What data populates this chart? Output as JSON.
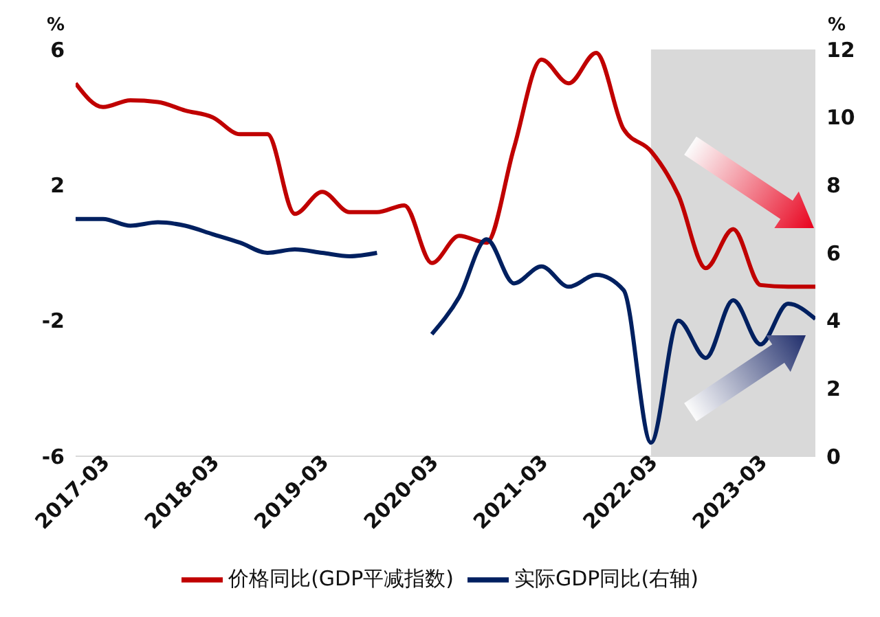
{
  "chart_data": {
    "type": "line",
    "ylabel": "%",
    "y2label": "%",
    "x": [
      "2017-03",
      "2017-06",
      "2017-09",
      "2017-12",
      "2018-03",
      "2018-06",
      "2018-09",
      "2018-12",
      "2019-03",
      "2019-06",
      "2019-09",
      "2019-12",
      "2020-03",
      "2020-06",
      "2020-09",
      "2020-12",
      "2021-03",
      "2021-06",
      "2021-09",
      "2021-12",
      "2022-03",
      "2022-06",
      "2022-09",
      "2022-12",
      "2023-03",
      "2023-06",
      "2023-09",
      "2023-12"
    ],
    "xlim": [
      "2017-03",
      "2023-12"
    ],
    "xticks": [
      "2017-03",
      "2018-03",
      "2019-03",
      "2020-03",
      "2021-03",
      "2022-03",
      "2023-03"
    ],
    "ylim": [
      -6,
      6
    ],
    "yticks": [
      -6,
      -2,
      2,
      6
    ],
    "y2lim": [
      0,
      12
    ],
    "y2ticks": [
      0,
      2,
      4,
      6,
      8,
      10,
      12
    ],
    "series": [
      {
        "name": "价格同比(GDP平减指数)",
        "color": "#c00000",
        "values": [
          5.0,
          4.3,
          4.5,
          4.45,
          4.2,
          4.0,
          3.5,
          3.5,
          1.15,
          1.8,
          1.2,
          1.2,
          1.4,
          -0.3,
          0.5,
          0.3,
          3.1,
          5.7,
          5.0,
          5.9,
          3.65,
          3.0,
          1.7,
          -0.45,
          0.7,
          -0.95,
          -1.0,
          -1.0
        ]
      },
      {
        "name": "实际GDP同比(右轴)",
        "color": "#002060",
        "axis": "y2",
        "values": [
          7.0,
          7.0,
          6.8,
          6.9,
          6.8,
          6.55,
          6.3,
          6.0,
          6.1,
          6.0,
          5.9,
          6.0,
          null,
          3.6,
          4.7,
          6.4,
          5.1,
          5.6,
          5.0,
          5.35,
          4.9,
          0.4,
          4.0,
          2.9,
          4.6,
          3.3,
          4.5,
          4.05
        ]
      }
    ],
    "bands": [
      {
        "axis": "x",
        "from": "2022-06",
        "to": "2023-12",
        "color": "#d9d9d9"
      }
    ],
    "legend": "bottom",
    "grid": false,
    "marker": "none",
    "line_style": "solid"
  }
}
